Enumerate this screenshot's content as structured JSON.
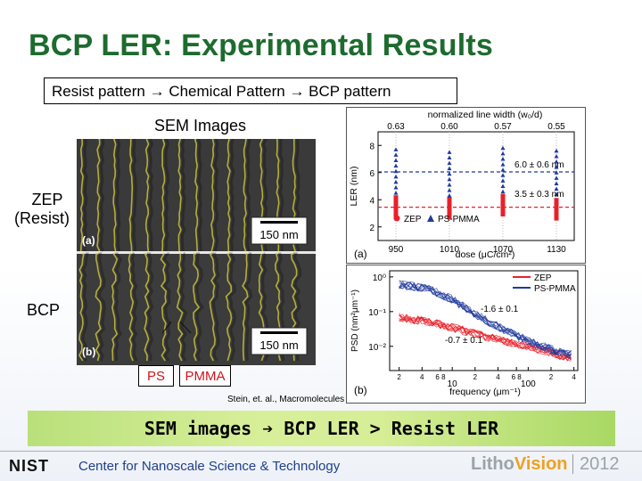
{
  "slide": {
    "title": "BCP LER: Experimental Results",
    "flow": "Resist pattern → Chemical Pattern → BCP pattern",
    "sem_label": "SEM Images",
    "row_zep": "ZEP",
    "row_zep_sub": "(Resist)",
    "row_bcp": "BCP",
    "panel_a_tag": "(a)",
    "panel_b_tag": "(b)",
    "scalebar": "150 nm",
    "tag_ps": "PS",
    "tag_pmma": "PMMA",
    "citation": "Stein, et. al., Macromolecules 2010",
    "banner": "SEM images ➔ BCP LER > Resist LER",
    "footer_nist": "NIST",
    "footer_center": "Center for Nanoscale Science & Technology",
    "footer_litho": "Litho",
    "footer_vision": "Vision",
    "footer_year": "2012",
    "colors": {
      "title": "#1d6b2e",
      "zep": "#e8202a",
      "ps_pmma": "#1f3a9c",
      "banner": "#c6e68a"
    }
  },
  "chart_data": [
    {
      "type": "scatter",
      "title": "",
      "panel": "(a)",
      "top_axis_label": "normalized line width (w₀/d)",
      "top_ticks": [
        "0.63",
        "0.60",
        "0.57",
        "0.55"
      ],
      "xlabel": "dose (μC/cm²)",
      "ylabel": "LER (nm)",
      "categories": [
        950,
        1010,
        1070,
        1130
      ],
      "ylim": [
        1,
        9
      ],
      "yticks": [
        2,
        4,
        6,
        8
      ],
      "series": [
        {
          "name": "ZEP",
          "marker": "circle",
          "color": "#e8202a",
          "values": [
            3.5,
            3.4,
            3.6,
            3.3
          ]
        },
        {
          "name": "PS-PMMA",
          "marker": "triangle",
          "color": "#1f3a9c",
          "values": [
            6.1,
            5.9,
            6.2,
            6.0
          ]
        }
      ],
      "annotations": [
        "6.0 ± 0.6 nm",
        "3.5 ± 0.3 nm"
      ]
    },
    {
      "type": "line",
      "title": "",
      "panel": "(b)",
      "xlabel": "frequency (μm⁻¹)",
      "ylabel": "PSD (nm²μm⁻¹)",
      "xscale": "log",
      "yscale": "log",
      "xlim": [
        1.5,
        450
      ],
      "ylim": [
        0.002,
        1.5
      ],
      "xticks": [
        "2",
        "4",
        "6 8",
        "10",
        "2",
        "4",
        "6 8",
        "100",
        "2",
        "4"
      ],
      "yticks": [
        "10⁰",
        "10⁻¹",
        "10⁻²"
      ],
      "series": [
        {
          "name": "ZEP",
          "color": "#e8202a",
          "x": [
            2,
            5,
            10,
            30,
            100,
            300
          ],
          "values": [
            0.07,
            0.05,
            0.035,
            0.018,
            0.01,
            0.005
          ]
        },
        {
          "name": "PS-PMMA",
          "color": "#1f3a9c",
          "x": [
            2,
            5,
            10,
            30,
            100,
            300
          ],
          "values": [
            0.6,
            0.45,
            0.22,
            0.05,
            0.014,
            0.006
          ]
        }
      ],
      "annotations": [
        "-1.6 ± 0.1",
        "-0.7 ± 0.1"
      ]
    }
  ]
}
